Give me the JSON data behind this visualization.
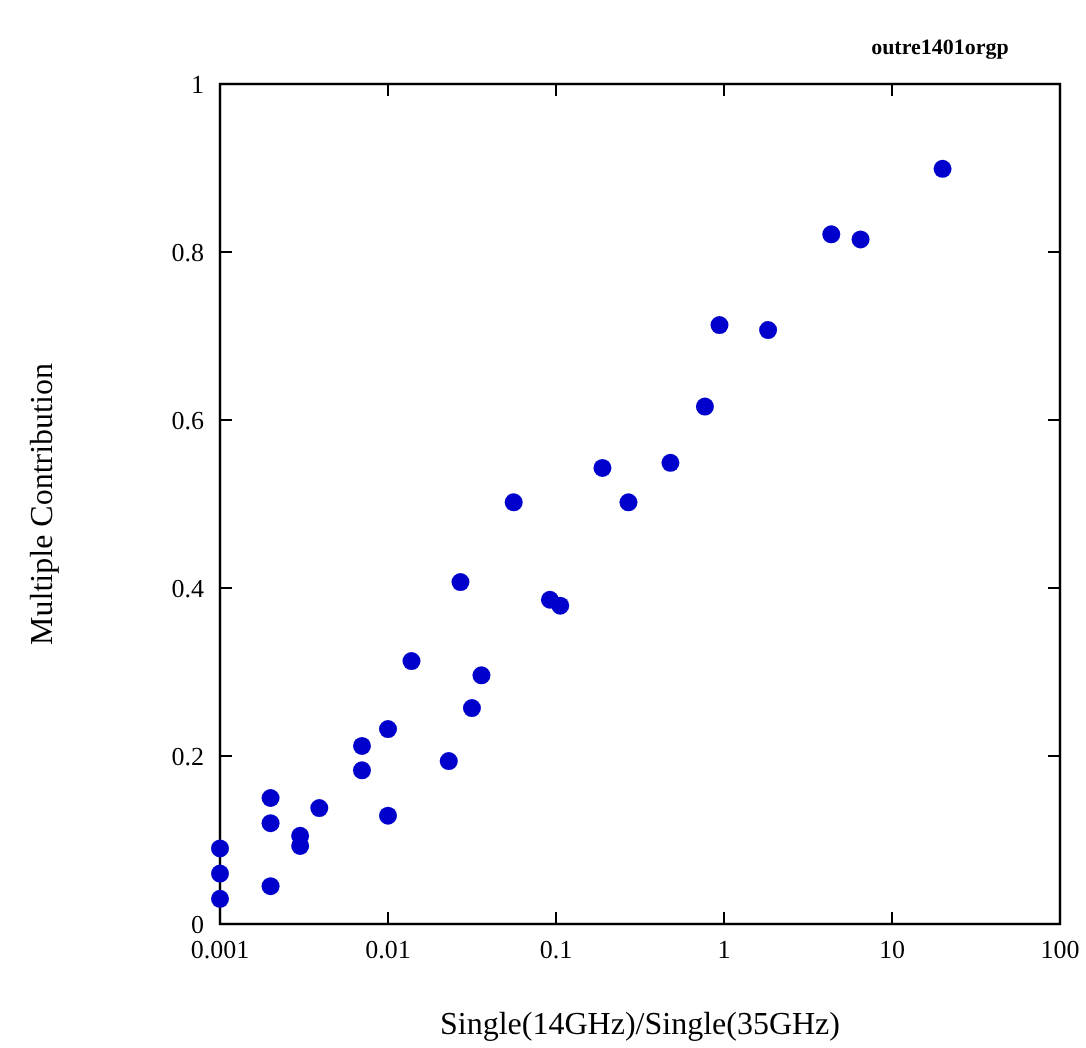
{
  "chart_data": {
    "type": "scatter",
    "title": "outre1401orgp",
    "xlabel": "Single(14GHz)/Single(35GHz)",
    "ylabel": "Multiple Contribution",
    "log": "x",
    "xlim": [
      0.001,
      100
    ],
    "ylim": [
      0,
      1
    ],
    "xticks": [
      0.001,
      0.01,
      0.1,
      1,
      10,
      100
    ],
    "yticks": [
      0,
      0.2,
      0.4,
      0.6,
      0.8,
      1
    ],
    "grid": false,
    "marker": "circle",
    "series": [
      {
        "color": "#0000cc",
        "x": [
          0.001,
          0.001,
          0.001,
          0.002,
          0.002,
          0.002,
          0.003,
          0.003,
          0.0039,
          0.007,
          0.007,
          0.01,
          0.01,
          0.0138,
          0.023,
          0.0316,
          0.036,
          0.027,
          0.092,
          0.106,
          0.056,
          0.189,
          0.27,
          0.48,
          0.77,
          0.94,
          1.83,
          4.35,
          6.5,
          20
        ],
        "values": [
          0.09,
          0.06,
          0.03,
          0.15,
          0.12,
          0.045,
          0.105,
          0.093,
          0.138,
          0.212,
          0.183,
          0.232,
          0.129,
          0.313,
          0.194,
          0.257,
          0.296,
          0.407,
          0.386,
          0.379,
          0.502,
          0.543,
          0.502,
          0.549,
          0.616,
          0.713,
          0.707,
          0.821,
          0.815,
          0.899
        ]
      }
    ]
  }
}
